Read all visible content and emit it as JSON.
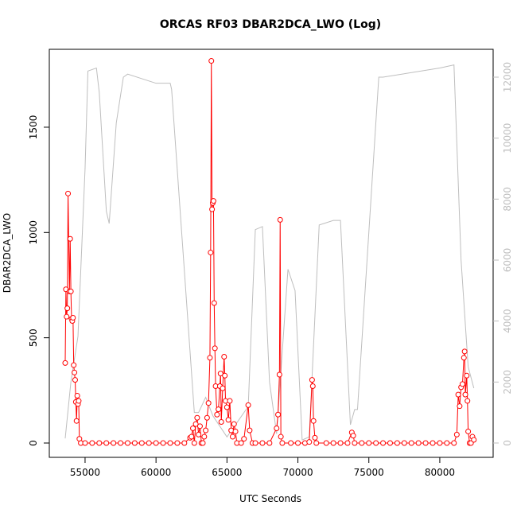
{
  "chart_data": {
    "type": "line",
    "title": "ORCAS RF03 DBAR2DCA_LWO (Log)",
    "x_label": "UTC Seconds",
    "y_label": "DBAR2DCA_LWO",
    "xlim": [
      52480,
      83760
    ],
    "xticks": [
      55000,
      60000,
      65000,
      70000,
      75000,
      80000
    ],
    "ylim": [
      -68,
      1870
    ],
    "yticks": [
      0,
      500,
      1000,
      1500
    ],
    "y2lim": [
      -470,
      12913
    ],
    "y2ticks": [
      0,
      2000,
      4000,
      6000,
      8000,
      10000,
      12000
    ],
    "series": [
      {
        "color": "#ff0000",
        "markers": true,
        "x": [
          53600,
          53650,
          53700,
          53750,
          53800,
          53900,
          53950,
          54000,
          54050,
          54100,
          54150,
          54200,
          54250,
          54300,
          54350,
          54400,
          54450,
          54500,
          54550,
          54600,
          54700,
          55000,
          55500,
          56000,
          56500,
          57000,
          57500,
          58000,
          58500,
          59000,
          59500,
          60000,
          60500,
          61000,
          61500,
          62000,
          62400,
          62500,
          62600,
          62700,
          62800,
          62900,
          63000,
          63100,
          63200,
          63300,
          63400,
          63500,
          63600,
          63700,
          63800,
          63850,
          63900,
          63950,
          64000,
          64050,
          64100,
          64150,
          64200,
          64300,
          64400,
          64500,
          64550,
          64600,
          64700,
          64800,
          64850,
          64900,
          65000,
          65100,
          65200,
          65300,
          65400,
          65500,
          65600,
          65700,
          66000,
          66200,
          66500,
          66600,
          66800,
          67000,
          67500,
          68000,
          68500,
          68600,
          68700,
          68750,
          68800,
          68900,
          69500,
          70000,
          70500,
          70800,
          71000,
          71050,
          71100,
          71200,
          71300,
          72000,
          72500,
          73000,
          73500,
          73800,
          73900,
          74000,
          74500,
          75000,
          75500,
          76000,
          76500,
          77000,
          77500,
          78000,
          78500,
          79000,
          79500,
          80000,
          80500,
          81000,
          81200,
          81300,
          81400,
          81500,
          81600,
          81700,
          81750,
          81800,
          81900,
          81950,
          82000,
          82100,
          82200,
          82300,
          82400
        ],
        "values": [
          380,
          730,
          600,
          640,
          1185,
          720,
          970,
          720,
          590,
          580,
          595,
          370,
          335,
          300,
          195,
          105,
          225,
          185,
          200,
          20,
          0,
          0,
          0,
          0,
          0,
          0,
          0,
          0,
          0,
          0,
          0,
          0,
          0,
          0,
          0,
          0,
          25,
          30,
          70,
          0,
          90,
          120,
          40,
          80,
          0,
          0,
          30,
          60,
          120,
          190,
          405,
          905,
          1815,
          1110,
          1140,
          1150,
          665,
          450,
          270,
          135,
          160,
          270,
          330,
          100,
          260,
          410,
          320,
          200,
          170,
          110,
          200,
          60,
          30,
          90,
          55,
          0,
          0,
          20,
          180,
          60,
          0,
          0,
          0,
          0,
          70,
          135,
          325,
          1060,
          30,
          0,
          0,
          0,
          0,
          5,
          300,
          270,
          105,
          25,
          0,
          0,
          0,
          0,
          0,
          50,
          35,
          0,
          0,
          0,
          0,
          0,
          0,
          0,
          0,
          0,
          0,
          0,
          0,
          0,
          0,
          0,
          40,
          230,
          175,
          265,
          280,
          405,
          435,
          230,
          320,
          200,
          55,
          0,
          0,
          30,
          15
        ]
      },
      {
        "color": "#bebebe",
        "axis": "y2",
        "markers": false,
        "x": [
          53600,
          54000,
          54500,
          55000,
          55200,
          55800,
          56000,
          56500,
          56700,
          57200,
          57700,
          58000,
          60000,
          61000,
          61100,
          62700,
          63000,
          63500,
          64000,
          65000,
          66500,
          67000,
          67500,
          68000,
          68500,
          69300,
          69800,
          70300,
          70800,
          71500,
          72500,
          73000,
          73700,
          74000,
          74200,
          75700,
          76000,
          80000,
          81000,
          81500,
          82000,
          82400
        ],
        "values": [
          150,
          2000,
          3500,
          9000,
          12200,
          12300,
          11500,
          7600,
          7200,
          10500,
          12000,
          12100,
          11800,
          11800,
          11600,
          1000,
          1000,
          1500,
          900,
          200,
          1200,
          7000,
          7100,
          2000,
          300,
          5700,
          5000,
          100,
          200,
          7150,
          7300,
          7300,
          600,
          1100,
          1100,
          12000,
          12000,
          12300,
          12400,
          6000,
          2500,
          1800
        ]
      }
    ]
  }
}
